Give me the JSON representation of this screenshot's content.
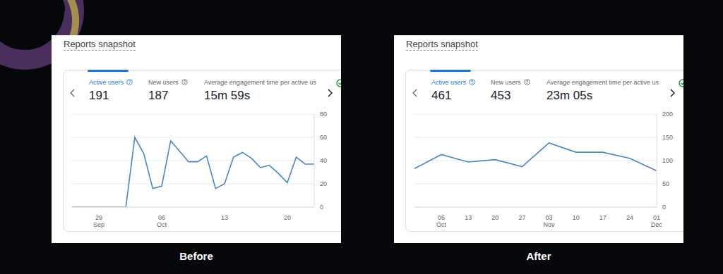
{
  "chart_data": [
    {
      "type": "line",
      "title": "Reports snapshot",
      "subtitle": "Before",
      "metrics": [
        {
          "label": "Active users",
          "value": 191
        },
        {
          "label": "New users",
          "value": 187
        },
        {
          "label": "Average engagement time per active us",
          "value": "15m 59s"
        }
      ],
      "categories": [
        null,
        null,
        null,
        "29 Sep",
        null,
        null,
        null,
        null,
        null,
        null,
        "06 Oct",
        null,
        null,
        null,
        null,
        null,
        null,
        "13",
        null,
        null,
        null,
        null,
        null,
        null,
        "20",
        null,
        null,
        null
      ],
      "values": [
        0,
        0,
        0,
        0,
        0,
        0,
        0,
        60,
        46,
        16,
        18,
        57,
        48,
        39,
        39,
        44,
        16,
        20,
        43,
        47,
        42,
        34,
        36,
        29,
        21,
        43,
        37,
        37
      ],
      "color": "#4a86c8",
      "ylim": [
        0,
        80
      ],
      "yticks": [
        0,
        20,
        40,
        60,
        80
      ],
      "grid": true
    },
    {
      "type": "line",
      "title": "Reports snapshot",
      "subtitle": "After",
      "metrics": [
        {
          "label": "Active users",
          "value": 461
        },
        {
          "label": "New users",
          "value": 453
        },
        {
          "label": "Average engagement time per active us",
          "value": "23m 05s"
        }
      ],
      "categories": [
        null,
        "06 Oct",
        "13",
        "20",
        "27",
        "03 Nov",
        "10",
        "17",
        "24",
        "01 Dec"
      ],
      "values": [
        83,
        113,
        97,
        102,
        87,
        138,
        118,
        118,
        105,
        78
      ],
      "color": "#4a86c8",
      "ylim": [
        0,
        200
      ],
      "yticks": [
        0,
        50,
        100,
        150,
        200
      ],
      "grid": true
    }
  ]
}
